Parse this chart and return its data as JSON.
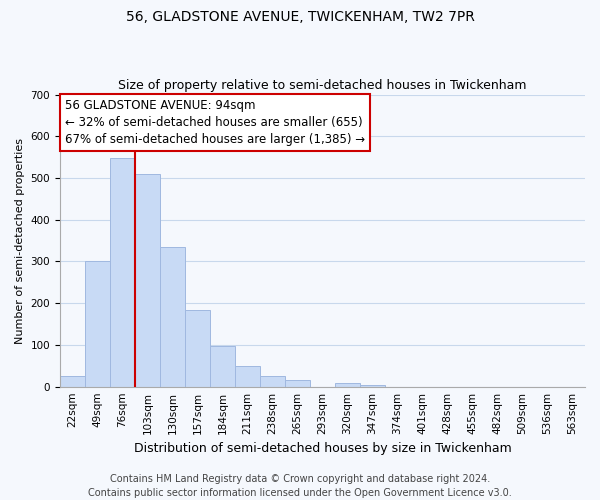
{
  "title1": "56, GLADSTONE AVENUE, TWICKENHAM, TW2 7PR",
  "title2": "Size of property relative to semi-detached houses in Twickenham",
  "xlabel": "Distribution of semi-detached houses by size in Twickenham",
  "ylabel": "Number of semi-detached properties",
  "footer1": "Contains HM Land Registry data © Crown copyright and database right 2024.",
  "footer2": "Contains public sector information licensed under the Open Government Licence v3.0.",
  "bar_labels": [
    "22sqm",
    "49sqm",
    "76sqm",
    "103sqm",
    "130sqm",
    "157sqm",
    "184sqm",
    "211sqm",
    "238sqm",
    "265sqm",
    "293sqm",
    "320sqm",
    "347sqm",
    "374sqm",
    "401sqm",
    "428sqm",
    "455sqm",
    "482sqm",
    "509sqm",
    "536sqm",
    "563sqm"
  ],
  "bar_values": [
    25,
    300,
    548,
    510,
    335,
    183,
    98,
    50,
    25,
    17,
    0,
    8,
    5,
    0,
    0,
    0,
    0,
    0,
    0,
    0,
    0
  ],
  "bar_color": "#c8daf5",
  "bar_edge_color": "#a0b8e0",
  "annotation_title": "56 GLADSTONE AVENUE: 94sqm",
  "annotation_line1": "← 32% of semi-detached houses are smaller (655)",
  "annotation_line2": "67% of semi-detached houses are larger (1,385) →",
  "annotation_box_color": "#ffffff",
  "annotation_box_edge_color": "#cc0000",
  "vline_color": "#cc0000",
  "vline_x": 2.5,
  "ylim": [
    0,
    700
  ],
  "yticks": [
    0,
    100,
    200,
    300,
    400,
    500,
    600,
    700
  ],
  "background_color": "#f5f8fd",
  "plot_bg_color": "#f5f8fd",
  "grid_color": "#c8d8ec",
  "title1_fontsize": 10,
  "title2_fontsize": 9,
  "xlabel_fontsize": 9,
  "ylabel_fontsize": 8,
  "tick_fontsize": 7.5,
  "footer_fontsize": 7,
  "annotation_fontsize": 8.5
}
